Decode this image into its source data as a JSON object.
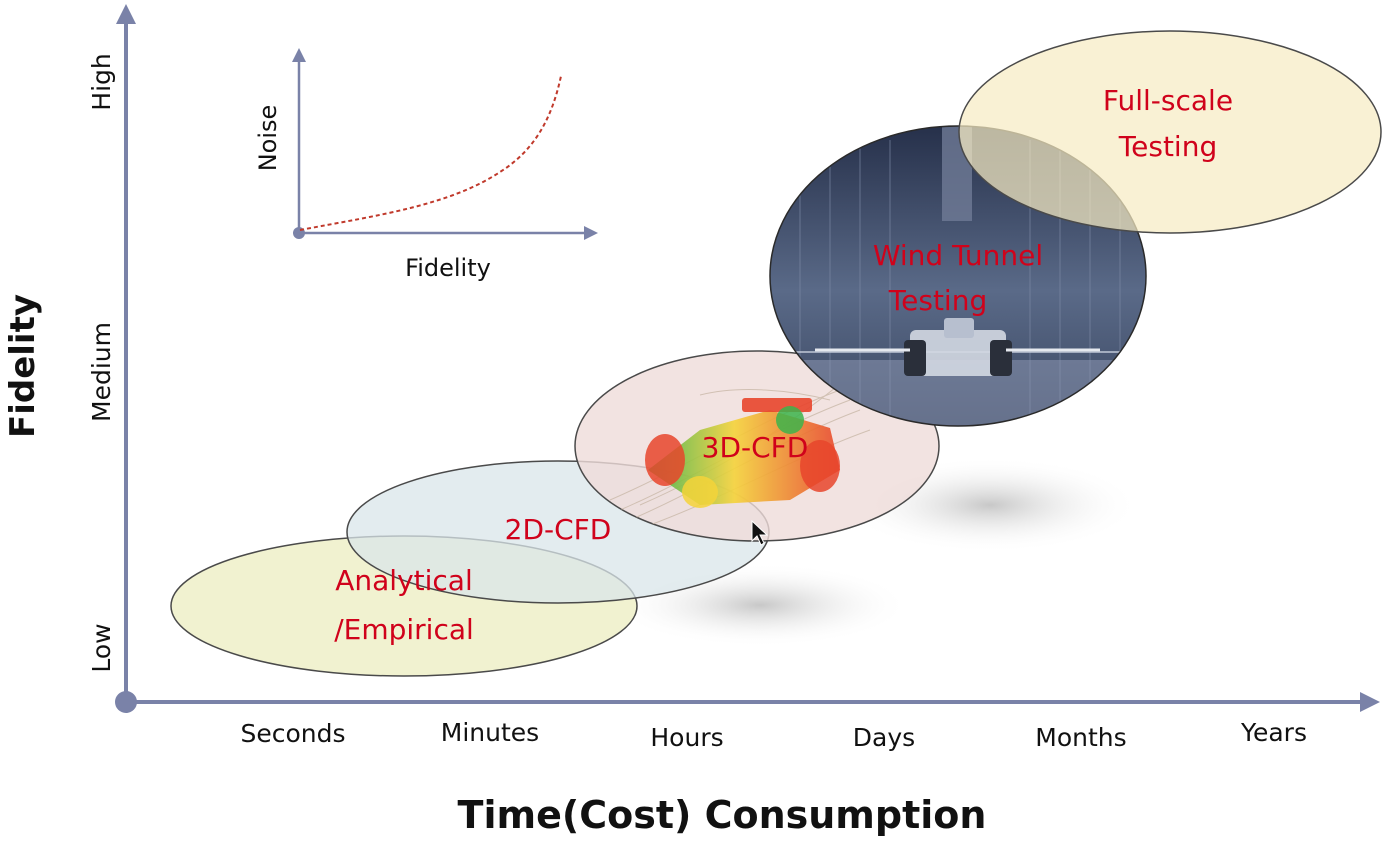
{
  "axes": {
    "y_title": "Fidelity",
    "x_title": "Time(Cost) Consumption",
    "y_levels": [
      "Low",
      "Medium",
      "High"
    ],
    "x_ticks": [
      "Seconds",
      "Minutes",
      "Hours",
      "Days",
      "Months",
      "Years"
    ],
    "axis_color": "#7a82a8"
  },
  "inset": {
    "y_label": "Noise",
    "x_label": "Fidelity",
    "curve_color": "#c0392b"
  },
  "regions": [
    {
      "id": "analytical",
      "lines": [
        "Analytical",
        "/Empirical"
      ],
      "fill": "#eef0c8"
    },
    {
      "id": "cfd2d",
      "lines": [
        "2D-CFD"
      ],
      "fill": "#d9e6ea"
    },
    {
      "id": "cfd3d",
      "lines": [
        "3D-CFD"
      ],
      "fill": "#efdcd9"
    },
    {
      "id": "windtunnel",
      "lines": [
        "Wind Tunnel",
        "Testing"
      ],
      "fill": "#3e4a66"
    },
    {
      "id": "fullscale",
      "lines": [
        "Full-scale",
        "Testing"
      ],
      "fill": "#f7ecc4"
    }
  ],
  "label_color": "#d0021b"
}
